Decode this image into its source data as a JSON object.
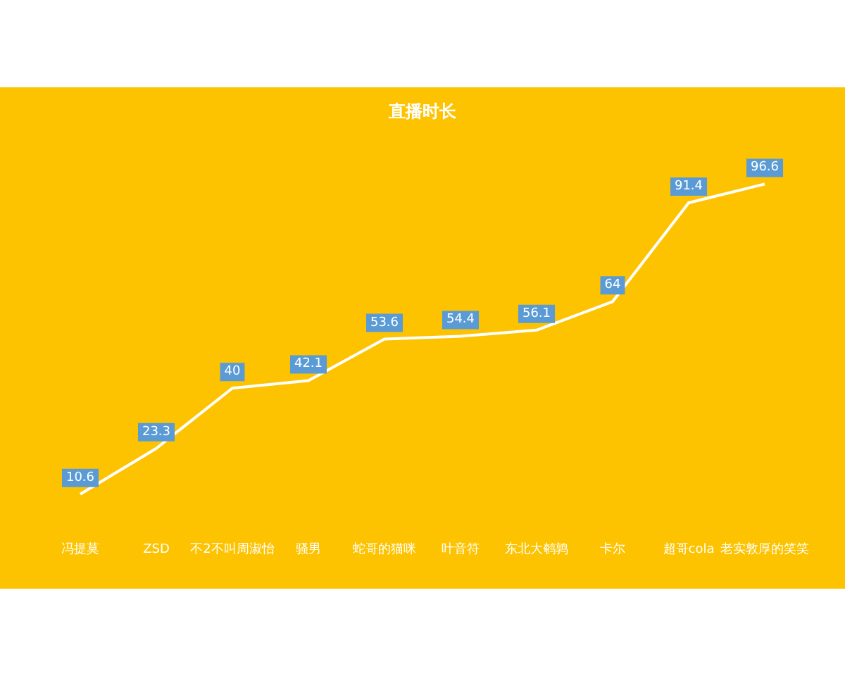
{
  "chart_data": {
    "type": "line",
    "title": "直播时长",
    "categories": [
      "冯提莫",
      "ZSD",
      "不2不叫周淑怡",
      "骚男",
      "蛇哥的猫咪",
      "叶音符",
      "东北大鹌鹑",
      "卡尔",
      "超哥cola",
      "老实敦厚的笑笑"
    ],
    "series": [
      {
        "color": "#ffffff",
        "values": [
          10.6,
          23.3,
          40,
          42.1,
          53.6,
          54.4,
          56.1,
          64,
          91.4,
          96.6
        ]
      }
    ],
    "data_labels": true,
    "marker": "none"
  }
}
